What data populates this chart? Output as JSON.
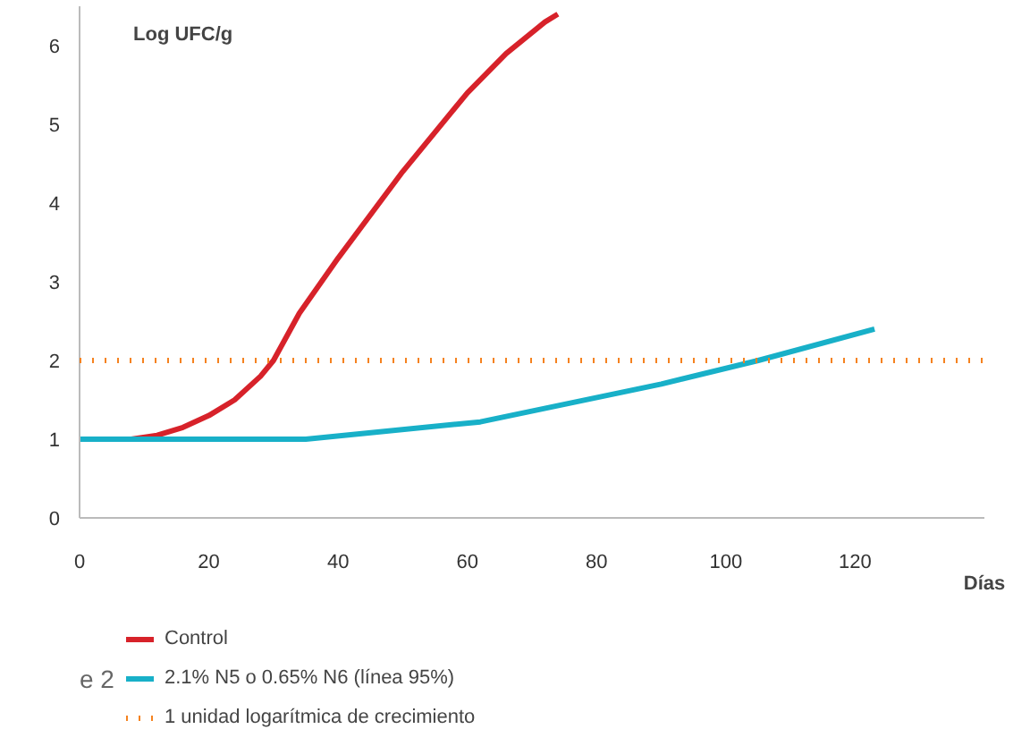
{
  "chart_data": {
    "type": "line",
    "ylabel": "Log UFC/g",
    "xlabel": "Días",
    "xlim": [
      0,
      140
    ],
    "ylim": [
      0,
      6.5
    ],
    "xticks": [
      0,
      20,
      40,
      60,
      80,
      100,
      120
    ],
    "yticks": [
      0,
      1,
      2,
      3,
      4,
      5,
      6
    ],
    "grid": false,
    "legend": "bottom",
    "line_style": "solid",
    "marker": "none",
    "series": [
      {
        "name": "Control",
        "color": "#d7222a",
        "x": [
          0,
          8,
          12,
          16,
          20,
          24,
          28,
          30,
          34,
          40,
          50,
          60,
          66,
          72,
          74
        ],
        "values": [
          1,
          1,
          1.05,
          1.15,
          1.3,
          1.5,
          1.8,
          2,
          2.6,
          3.3,
          4.4,
          5.4,
          5.9,
          6.3,
          6.4
        ]
      },
      {
        "name": "2.1% N5 o 0.65% N6 (línea 95%)",
        "color": "#18b0c8",
        "x": [
          0,
          35,
          62,
          90,
          105,
          123
        ],
        "values": [
          1,
          1,
          1.22,
          1.7,
          2.0,
          2.4
        ]
      }
    ],
    "ref_lines": [
      {
        "axis": "y",
        "value": 2,
        "label": "1 unidad logarítmica de crecimiento",
        "color": "#f5821f",
        "line_style": "dotted"
      }
    ],
    "annotations": [
      "e 2"
    ]
  }
}
